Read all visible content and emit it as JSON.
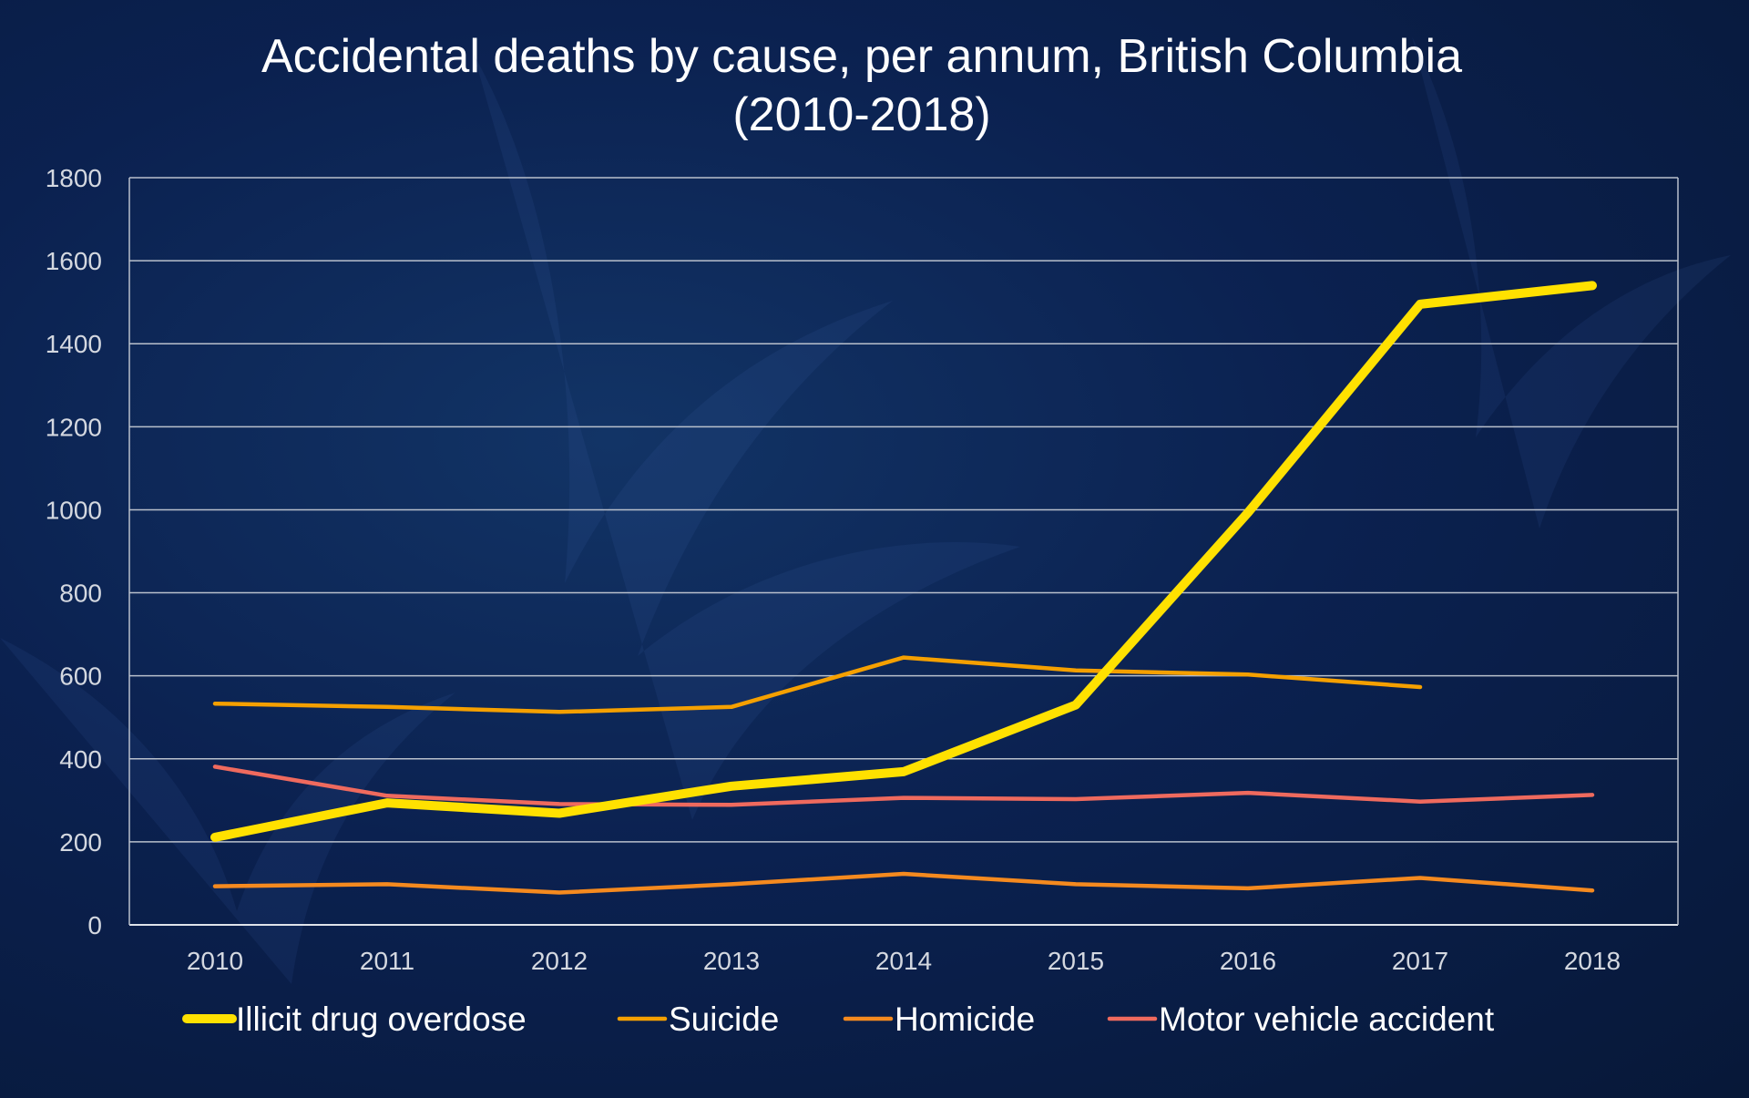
{
  "chart_data": {
    "type": "line",
    "title": "Accidental deaths by cause, per annum, British Columbia (2010-2018)",
    "title_lines": [
      "Accidental deaths by cause, per annum, British Columbia",
      "(2010-2018)"
    ],
    "xlabel": "",
    "ylabel": "",
    "categories": [
      "2010",
      "2011",
      "2012",
      "2013",
      "2014",
      "2015",
      "2016",
      "2017",
      "2018"
    ],
    "ylim": [
      0,
      1800
    ],
    "yticks": [
      0,
      200,
      400,
      600,
      800,
      1000,
      1200,
      1400,
      1600,
      1800
    ],
    "grid": true,
    "legend": "bottom",
    "series": [
      {
        "name": "Illicit drug overdose",
        "color": "#ffe100",
        "width": "thick",
        "values": [
          211,
          294,
          269,
          334,
          369,
          530,
          993,
          1495,
          1540
        ]
      },
      {
        "name": "Suicide",
        "color": "#f5a000",
        "width": "thin",
        "values": [
          533,
          525,
          513,
          525,
          644,
          613,
          603,
          573,
          null
        ]
      },
      {
        "name": "Homicide",
        "color": "#f58a1f",
        "width": "thin",
        "values": [
          93,
          98,
          78,
          98,
          123,
          98,
          88,
          113,
          83
        ]
      },
      {
        "name": "Motor vehicle accident",
        "color": "#ef6a5e",
        "width": "thin",
        "values": [
          381,
          311,
          291,
          289,
          306,
          303,
          318,
          297,
          313
        ]
      }
    ]
  }
}
